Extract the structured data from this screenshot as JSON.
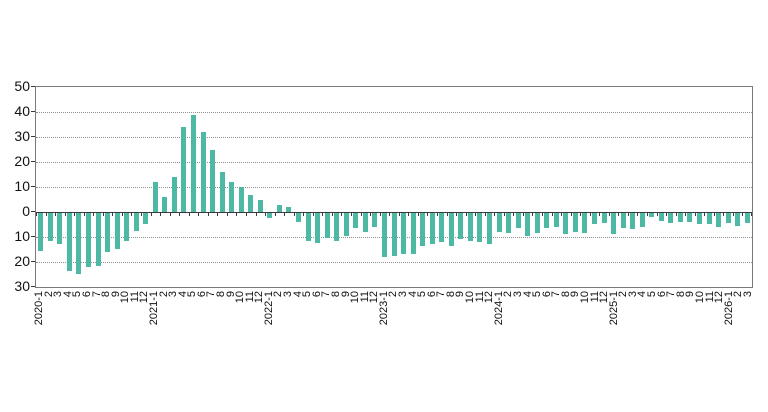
{
  "chart_data": {
    "type": "bar",
    "title": "",
    "xlabel": "",
    "ylabel": "",
    "ylim": [
      -30,
      50
    ],
    "grid": "horizontal-dotted",
    "legend": "none",
    "categories": [
      "2020-1",
      "2",
      "3",
      "4",
      "5",
      "6",
      "7",
      "8",
      "9",
      "10",
      "11",
      "12",
      "2021-1",
      "2",
      "3",
      "4",
      "5",
      "6",
      "7",
      "8",
      "9",
      "10",
      "11",
      "12",
      "2022-1",
      "2",
      "3",
      "4",
      "5",
      "6",
      "7",
      "8",
      "9",
      "10",
      "11",
      "12",
      "2023-1",
      "2",
      "3",
      "4",
      "5",
      "6",
      "7",
      "8",
      "9",
      "10",
      "11",
      "12",
      "2024-1",
      "2",
      "3",
      "4",
      "5",
      "6",
      "7",
      "8",
      "9",
      "10",
      "11",
      "12",
      "2025-1",
      "2",
      "3",
      "4",
      "5",
      "6",
      "7",
      "8",
      "9",
      "10",
      "11",
      "12",
      "2026-1",
      "2",
      "3"
    ],
    "values": [
      -15,
      -11,
      -12.5,
      -23,
      -24.5,
      -21.5,
      -21,
      -15.5,
      -14.5,
      -11,
      -7,
      -4.5,
      12,
      6,
      14,
      34,
      39,
      32,
      25,
      16,
      12,
      10,
      7,
      5,
      -2,
      3,
      2,
      -3.5,
      -11,
      -12,
      -10,
      -11,
      -9,
      -6,
      -7.5,
      -5.5,
      -17.5,
      -17,
      -16.5,
      -16.5,
      -13,
      -12.5,
      -11.5,
      -13,
      -10.5,
      -11,
      -11.5,
      -12.5,
      -7.5,
      -8,
      -6,
      -9,
      -8,
      -6,
      -5.5,
      -8.5,
      -7.5,
      -8,
      -4.5,
      -4,
      -8.5,
      -6,
      -6.5,
      -5.5,
      -1.5,
      -3,
      -4,
      -3.5,
      -3.5,
      -4.5,
      -4.5,
      -5.5,
      -4,
      -5,
      -4
    ],
    "yticks": [
      {
        "value": 50,
        "label": "50"
      },
      {
        "value": 40,
        "label": "40"
      },
      {
        "value": 30,
        "label": "30"
      },
      {
        "value": 20,
        "label": "20"
      },
      {
        "value": 10,
        "label": "10"
      },
      {
        "value": 0,
        "label": "0"
      },
      {
        "value": -10,
        "label": "10"
      },
      {
        "value": -20,
        "label": "20"
      },
      {
        "value": -30,
        "label": "30"
      }
    ],
    "gridline_values": [
      40,
      30,
      20,
      10,
      -10,
      -20
    ],
    "colors": {
      "bar": "#4db8a3",
      "grid": "#8f8f8f",
      "axis": "#3a3a3a",
      "border": "#7a7a7a",
      "text": "#111111",
      "background": "#ffffff"
    }
  }
}
